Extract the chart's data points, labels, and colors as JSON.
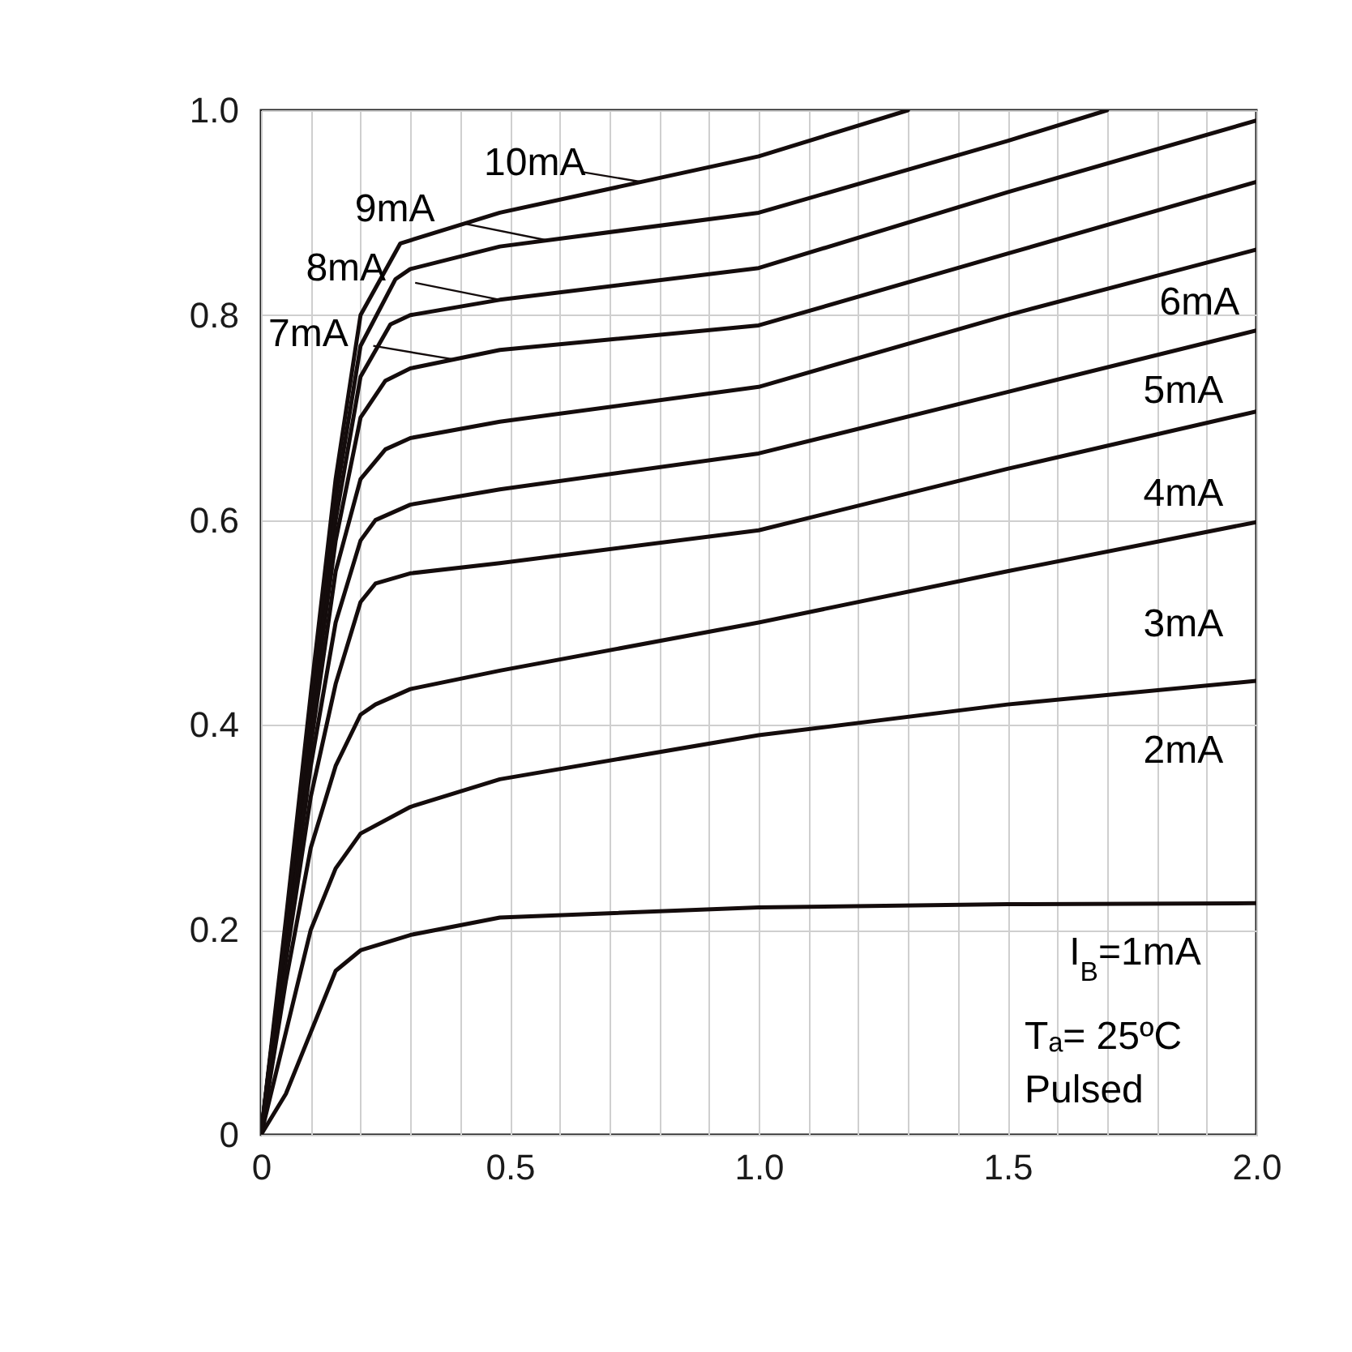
{
  "chart_data": {
    "type": "line",
    "xlim": [
      0,
      2.0
    ],
    "ylim": [
      0,
      1.0
    ],
    "xticks": [
      0,
      {
        "value": 0.1,
        "label": null
      },
      {
        "value": 0.2,
        "label": null
      },
      {
        "value": 0.3,
        "label": null
      },
      {
        "value": 0.4,
        "label": null
      },
      0.5,
      {
        "value": 0.6,
        "label": null
      },
      {
        "value": 0.7,
        "label": null
      },
      {
        "value": 0.8,
        "label": null
      },
      {
        "value": 0.9,
        "label": null
      },
      {
        "value": 1.0,
        "label": "1.0"
      },
      {
        "value": 1.1,
        "label": null
      },
      {
        "value": 1.2,
        "label": null
      },
      {
        "value": 1.3,
        "label": null
      },
      {
        "value": 1.4,
        "label": null
      },
      1.5,
      {
        "value": 1.6,
        "label": null
      },
      {
        "value": 1.7,
        "label": null
      },
      {
        "value": 1.8,
        "label": null
      },
      {
        "value": 1.9,
        "label": null
      },
      {
        "value": 2.0,
        "label": "2.0"
      }
    ],
    "yticks": [
      0,
      0.2,
      0.4,
      0.6,
      0.8,
      {
        "value": 1.0,
        "label": "1.0"
      }
    ],
    "grid": true,
    "legend": false,
    "marker": "none",
    "line_style": "solid",
    "series": [
      {
        "color": "#140c0c",
        "x": [
          0,
          0.05,
          0.1,
          0.15,
          0.2,
          0.3,
          0.48,
          1.0,
          1.5,
          2.0
        ],
        "values": [
          0,
          0.04,
          0.1,
          0.16,
          0.18,
          0.195,
          0.212,
          0.222,
          0.225,
          0.226
        ]
      },
      {
        "color": "#140c0c",
        "x": [
          0,
          0.05,
          0.1,
          0.15,
          0.2,
          0.3,
          0.48,
          1.0,
          1.5,
          2.0
        ],
        "values": [
          0,
          0.1,
          0.2,
          0.26,
          0.294,
          0.32,
          0.347,
          0.39,
          0.42,
          0.443
        ]
      },
      {
        "color": "#140c0c",
        "x": [
          0,
          0.05,
          0.1,
          0.15,
          0.2,
          0.23,
          0.3,
          0.48,
          1.0,
          1.5,
          2.0
        ],
        "values": [
          0,
          0.15,
          0.28,
          0.36,
          0.41,
          0.42,
          0.435,
          0.453,
          0.5,
          0.55,
          0.598
        ]
      },
      {
        "color": "#140c0c",
        "x": [
          0,
          0.05,
          0.1,
          0.15,
          0.2,
          0.23,
          0.3,
          0.48,
          1.0,
          1.5,
          2.0
        ],
        "values": [
          0,
          0.17,
          0.33,
          0.44,
          0.52,
          0.538,
          0.548,
          0.558,
          0.59,
          0.65,
          0.706
        ]
      },
      {
        "color": "#140c0c",
        "x": [
          0,
          0.05,
          0.1,
          0.15,
          0.2,
          0.23,
          0.3,
          0.48,
          1.0,
          1.5,
          2.0
        ],
        "values": [
          0,
          0.18,
          0.36,
          0.5,
          0.58,
          0.6,
          0.615,
          0.63,
          0.665,
          0.725,
          0.785
        ]
      },
      {
        "color": "#140c0c",
        "x": [
          0,
          0.05,
          0.1,
          0.15,
          0.2,
          0.25,
          0.3,
          0.48,
          1.0,
          1.5,
          2.0
        ],
        "values": [
          0,
          0.19,
          0.38,
          0.55,
          0.64,
          0.669,
          0.68,
          0.696,
          0.73,
          0.8,
          0.864
        ]
      },
      {
        "color": "#140c0c",
        "x": [
          0,
          0.05,
          0.1,
          0.15,
          0.2,
          0.25,
          0.3,
          0.48,
          1.0,
          1.5,
          2.0
        ],
        "values": [
          0,
          0.2,
          0.4,
          0.58,
          0.7,
          0.736,
          0.748,
          0.766,
          0.79,
          0.86,
          0.93
        ]
      },
      {
        "color": "#140c0c",
        "x": [
          0,
          0.05,
          0.1,
          0.15,
          0.2,
          0.26,
          0.3,
          0.48,
          1.0,
          1.5,
          2.0
        ],
        "values": [
          0,
          0.2,
          0.41,
          0.6,
          0.74,
          0.791,
          0.8,
          0.815,
          0.846,
          0.92,
          0.99
        ]
      },
      {
        "color": "#140c0c",
        "x": [
          0,
          0.05,
          0.1,
          0.15,
          0.2,
          0.27,
          0.3,
          0.48,
          1.0,
          1.5,
          1.7
        ],
        "values": [
          0,
          0.2,
          0.42,
          0.62,
          0.77,
          0.835,
          0.845,
          0.867,
          0.9,
          0.97,
          1.0
        ]
      },
      {
        "color": "#140c0c",
        "x": [
          0,
          0.05,
          0.1,
          0.15,
          0.2,
          0.28,
          0.48,
          1.0,
          1.3
        ],
        "values": [
          0,
          0.21,
          0.43,
          0.64,
          0.8,
          0.87,
          0.9,
          0.955,
          1.0
        ]
      }
    ],
    "annotations": [
      {
        "text": "10mA",
        "x": 0.765,
        "y": 0.93
      },
      {
        "text": "9mA",
        "x": 0.575,
        "y": 0.873
      },
      {
        "text": "8mA",
        "x": 0.48,
        "y": 0.815
      },
      {
        "text": "7mA",
        "x": 0.385,
        "y": 0.757
      },
      {
        "text": "6mA",
        "x": 1.85,
        "y": 0.845
      },
      {
        "text": "5mA",
        "x": 1.85,
        "y": 0.767
      },
      {
        "text": "4mA",
        "x": 1.85,
        "y": 0.69
      },
      {
        "text": "3mA",
        "x": 1.85,
        "y": 0.585
      },
      {
        "text": "2mA",
        "x": 1.85,
        "y": 0.436
      },
      {
        "text": "I$_{B}$=1mA",
        "x": 1.75,
        "y": 0.226
      },
      "Tₐ= 25ºC",
      "Pulsed"
    ]
  }
}
